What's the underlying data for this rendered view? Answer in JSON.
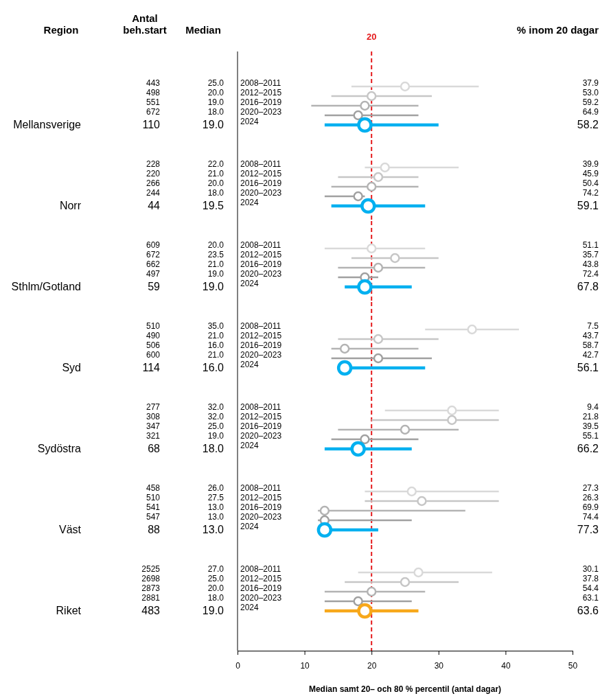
{
  "chart_data": [
    {
      "type": "other",
      "annotations": [
        "Region",
        "Antal beh.start",
        "Median",
        "% inom 20 dagar"
      ]
    },
    {
      "type": "scatter",
      "orientation": "horizontal",
      "ylabel": "Mellansverige",
      "categories": [
        "2008–2011",
        "2012–2015",
        "2016–2019",
        "2020–2023",
        "2024"
      ],
      "values": [
        25,
        20,
        19,
        18,
        19
      ],
      "errors": [
        [
          17,
          36
        ],
        [
          14,
          29
        ],
        [
          11,
          27
        ],
        [
          13,
          27
        ],
        [
          13,
          30
        ]
      ],
      "sizes": [
        0.44,
        0.44,
        0.44,
        0.44,
        1
      ],
      "colors": [
        "#d9d9d9",
        "#c6c6c6",
        "#b3b3b3",
        "#a0a0a0",
        "#00b0f0"
      ],
      "value_labels": [
        "25.0",
        "20.0",
        "19.0",
        "18.0",
        "19.0"
      ],
      "annotations": [
        "443",
        "498",
        "551",
        "672",
        "110",
        "37.9",
        "53.0",
        "59.2",
        "64.9",
        "58.2"
      ],
      "xlim": [
        0,
        50
      ],
      "tick_labels": "y",
      "marker": "circle",
      "ref_lines": [
        {
          "axis": "x",
          "value": 20,
          "label": "20",
          "color": "#e41a1c",
          "line_style": "dashed"
        }
      ]
    },
    {
      "type": "scatter",
      "orientation": "horizontal",
      "ylabel": "Norr",
      "categories": [
        "2008–2011",
        "2012–2015",
        "2016–2019",
        "2020–2023",
        "2024"
      ],
      "values": [
        22,
        21,
        20,
        18,
        19.5
      ],
      "errors": [
        [
          19,
          33
        ],
        [
          15,
          27
        ],
        [
          14,
          27
        ],
        [
          13,
          19
        ],
        [
          14,
          28
        ]
      ],
      "sizes": [
        0.44,
        0.44,
        0.44,
        0.44,
        1
      ],
      "colors": [
        "#d9d9d9",
        "#c6c6c6",
        "#b3b3b3",
        "#a0a0a0",
        "#00b0f0"
      ],
      "value_labels": [
        "22.0",
        "21.0",
        "20.0",
        "18.0",
        "19.5"
      ],
      "annotations": [
        "228",
        "220",
        "266",
        "244",
        "44",
        "39.9",
        "45.9",
        "50.4",
        "74.2",
        "59.1"
      ],
      "xlim": [
        0,
        50
      ],
      "tick_labels": "y",
      "marker": "circle",
      "ref_lines": [
        {
          "axis": "x",
          "value": 20,
          "color": "#e41a1c",
          "line_style": "dashed"
        }
      ]
    },
    {
      "type": "scatter",
      "orientation": "horizontal",
      "ylabel": "Sthlm/Gotland",
      "categories": [
        "2008–2011",
        "2012–2015",
        "2016–2019",
        "2020–2023",
        "2024"
      ],
      "values": [
        20,
        23.5,
        21,
        19,
        19
      ],
      "errors": [
        [
          13,
          28
        ],
        [
          17,
          30
        ],
        [
          15,
          28
        ],
        [
          15,
          21
        ],
        [
          16,
          26
        ]
      ],
      "sizes": [
        0.44,
        0.44,
        0.44,
        0.44,
        1
      ],
      "colors": [
        "#d9d9d9",
        "#c6c6c6",
        "#b3b3b3",
        "#a0a0a0",
        "#00b0f0"
      ],
      "value_labels": [
        "20.0",
        "23.5",
        "21.0",
        "19.0",
        "19.0"
      ],
      "annotations": [
        "609",
        "672",
        "662",
        "497",
        "59",
        "51.1",
        "35.7",
        "43.8",
        "72.4",
        "67.8"
      ],
      "xlim": [
        0,
        50
      ],
      "tick_labels": "y",
      "marker": "circle",
      "ref_lines": [
        {
          "axis": "x",
          "value": 20,
          "color": "#e41a1c",
          "line_style": "dashed"
        }
      ]
    },
    {
      "type": "scatter",
      "orientation": "horizontal",
      "ylabel": "Syd",
      "categories": [
        "2008–2011",
        "2012–2015",
        "2016–2019",
        "2020–2023",
        "2024"
      ],
      "values": [
        35,
        21,
        16,
        21,
        16
      ],
      "errors": [
        [
          28,
          42
        ],
        [
          15,
          30
        ],
        [
          14,
          27
        ],
        [
          14,
          29
        ],
        [
          16,
          28
        ]
      ],
      "sizes": [
        0.44,
        0.44,
        0.44,
        0.44,
        1
      ],
      "colors": [
        "#d9d9d9",
        "#c6c6c6",
        "#b3b3b3",
        "#a0a0a0",
        "#00b0f0"
      ],
      "value_labels": [
        "35.0",
        "21.0",
        "16.0",
        "21.0",
        "16.0"
      ],
      "annotations": [
        "510",
        "490",
        "506",
        "600",
        "114",
        "7.5",
        "43.7",
        "58.7",
        "42.7",
        "56.1"
      ],
      "xlim": [
        0,
        50
      ],
      "tick_labels": "y",
      "marker": "circle",
      "ref_lines": [
        {
          "axis": "x",
          "value": 20,
          "color": "#e41a1c",
          "line_style": "dashed"
        }
      ]
    },
    {
      "type": "scatter",
      "orientation": "horizontal",
      "ylabel": "Sydöstra",
      "categories": [
        "2008–2011",
        "2012–2015",
        "2016–2019",
        "2020–2023",
        "2024"
      ],
      "values": [
        32,
        32,
        25,
        19,
        18
      ],
      "errors": [
        [
          22,
          39
        ],
        [
          20,
          39
        ],
        [
          15,
          33
        ],
        [
          14,
          27
        ],
        [
          13,
          26
        ]
      ],
      "sizes": [
        0.44,
        0.44,
        0.44,
        0.44,
        1
      ],
      "colors": [
        "#d9d9d9",
        "#c6c6c6",
        "#b3b3b3",
        "#a0a0a0",
        "#00b0f0"
      ],
      "value_labels": [
        "32.0",
        "32.0",
        "25.0",
        "19.0",
        "18.0"
      ],
      "annotations": [
        "277",
        "308",
        "347",
        "321",
        "68",
        "9.4",
        "21.8",
        "39.5",
        "55.1",
        "66.2"
      ],
      "xlim": [
        0,
        50
      ],
      "tick_labels": "y",
      "marker": "circle",
      "ref_lines": [
        {
          "axis": "x",
          "value": 20,
          "color": "#e41a1c",
          "line_style": "dashed"
        }
      ]
    },
    {
      "type": "scatter",
      "orientation": "horizontal",
      "ylabel": "Väst",
      "categories": [
        "2008–2011",
        "2012–2015",
        "2016–2019",
        "2020–2023",
        "2024"
      ],
      "values": [
        26,
        27.5,
        13,
        13,
        13
      ],
      "errors": [
        [
          19,
          39
        ],
        [
          19,
          39
        ],
        [
          12,
          34
        ],
        [
          12,
          26
        ],
        [
          13,
          21
        ]
      ],
      "sizes": [
        0.44,
        0.44,
        0.44,
        0.44,
        1
      ],
      "colors": [
        "#d9d9d9",
        "#c6c6c6",
        "#b3b3b3",
        "#a0a0a0",
        "#00b0f0"
      ],
      "value_labels": [
        "26.0",
        "27.5",
        "13.0",
        "13.0",
        "13.0"
      ],
      "annotations": [
        "458",
        "510",
        "541",
        "547",
        "88",
        "27.3",
        "26.3",
        "69.9",
        "74.4",
        "77.3"
      ],
      "xlim": [
        0,
        50
      ],
      "tick_labels": "y",
      "marker": "circle",
      "ref_lines": [
        {
          "axis": "x",
          "value": 20,
          "color": "#e41a1c",
          "line_style": "dashed"
        }
      ]
    },
    {
      "type": "scatter",
      "orientation": "horizontal",
      "ylabel": "Riket",
      "categories": [
        "2008–2011",
        "2012–2015",
        "2016–2019",
        "2020–2023",
        "2024"
      ],
      "values": [
        27,
        25,
        20,
        18,
        19
      ],
      "errors": [
        [
          18,
          38
        ],
        [
          16,
          33
        ],
        [
          13,
          28
        ],
        [
          13,
          26
        ],
        [
          13,
          27
        ]
      ],
      "sizes": [
        0.44,
        0.44,
        0.44,
        0.44,
        1
      ],
      "colors": [
        "#d9d9d9",
        "#c6c6c6",
        "#b3b3b3",
        "#a0a0a0",
        "#f7a81b"
      ],
      "value_labels": [
        "27.0",
        "25.0",
        "20.0",
        "18.0",
        "19.0"
      ],
      "annotations": [
        "2525",
        "2698",
        "2873",
        "2881",
        "483",
        "30.1",
        "37.8",
        "54.4",
        "63.1",
        "63.6"
      ],
      "xlim": [
        0,
        50
      ],
      "xticks": [
        0,
        10,
        20,
        30,
        40,
        50
      ],
      "xlabel": "Median samt 20– och 80 % percentil (antal dagar)",
      "marker": "circle",
      "ref_lines": [
        {
          "axis": "x",
          "value": 20,
          "color": "#e41a1c",
          "line_style": "dashed"
        }
      ]
    }
  ]
}
